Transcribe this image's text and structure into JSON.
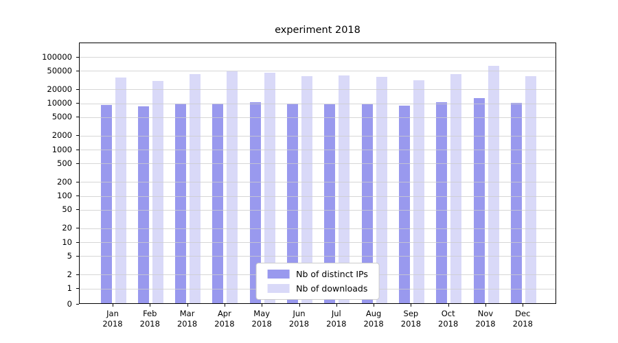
{
  "figure": {
    "background": "#ffffff"
  },
  "chart_data": {
    "type": "bar",
    "title": "experiment 2018",
    "xlabel": "",
    "ylabel": "",
    "yscale": "symlog",
    "ylim": [
      0,
      100000
    ],
    "grid": true,
    "legend_position": "lower center",
    "categories": [
      "Jan 2018",
      "Feb 2018",
      "Mar 2018",
      "Apr 2018",
      "May 2018",
      "Jun 2018",
      "Jul 2018",
      "Aug 2018",
      "Sep 2018",
      "Oct 2018",
      "Nov 2018",
      "Dec 2018"
    ],
    "yticks": [
      0,
      1,
      2,
      5,
      10,
      20,
      50,
      100,
      200,
      500,
      1000,
      2000,
      5000,
      10000,
      20000,
      50000,
      100000
    ],
    "series": [
      {
        "name": "Nb of distinct IPs",
        "color": "#9999ee",
        "values": [
          8800,
          8100,
          9400,
          9200,
          10000,
          9200,
          9100,
          8900,
          8400,
          9900,
          12400,
          9600
        ]
      },
      {
        "name": "Nb of downloads",
        "color": "#d9d9f8",
        "values": [
          34000,
          29000,
          41000,
          46000,
          44000,
          36000,
          38000,
          35000,
          30000,
          41000,
          62000,
          37000
        ]
      }
    ]
  }
}
